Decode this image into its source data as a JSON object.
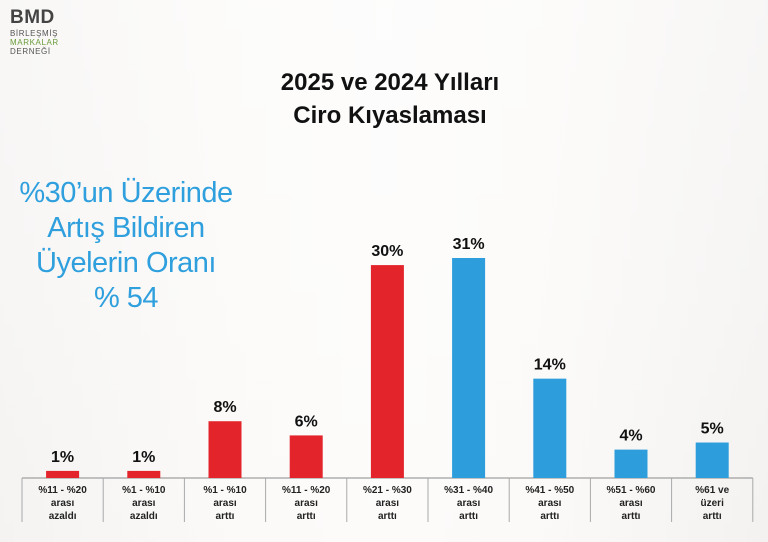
{
  "logo": {
    "mark": "BMD",
    "lines": [
      "BİRLEŞMİŞ",
      "MARKALAR",
      "DERNEĞİ"
    ]
  },
  "title_lines": [
    "2025 ve 2024 Yılları",
    "Ciro Kıyaslaması"
  ],
  "callout_lines": [
    "%30’un Üzerinde",
    "Artış Bildiren",
    "Üyelerin Oranı",
    "% 54"
  ],
  "colors": {
    "red": "#e3242b",
    "blue": "#2e9ddb",
    "callout": "#2fa0dd"
  },
  "chart_data": {
    "type": "bar",
    "categories": [
      [
        "%11 - %20",
        "arası",
        "azaldı"
      ],
      [
        "%1 - %10",
        "arası",
        "azaldı"
      ],
      [
        "%1 - %10",
        "arası",
        "arttı"
      ],
      [
        "%11 - %20",
        "arası",
        "arttı"
      ],
      [
        "%21 - %30",
        "arası",
        "arttı"
      ],
      [
        "%31 - %40",
        "arası",
        "arttı"
      ],
      [
        "%41 - %50",
        "arası",
        "arttı"
      ],
      [
        "%51 - %60",
        "arası",
        "arttı"
      ],
      [
        "%61 ve",
        "üzeri",
        "arttı"
      ]
    ],
    "values": [
      1,
      1,
      8,
      6,
      30,
      31,
      14,
      4,
      5
    ],
    "value_labels": [
      "1%",
      "1%",
      "8%",
      "6%",
      "30%",
      "31%",
      "14%",
      "4%",
      "5%"
    ],
    "bar_colors": [
      "red",
      "red",
      "red",
      "red",
      "red",
      "blue",
      "blue",
      "blue",
      "blue"
    ],
    "ylim": [
      0,
      31
    ],
    "grid": false,
    "legend": "none"
  }
}
